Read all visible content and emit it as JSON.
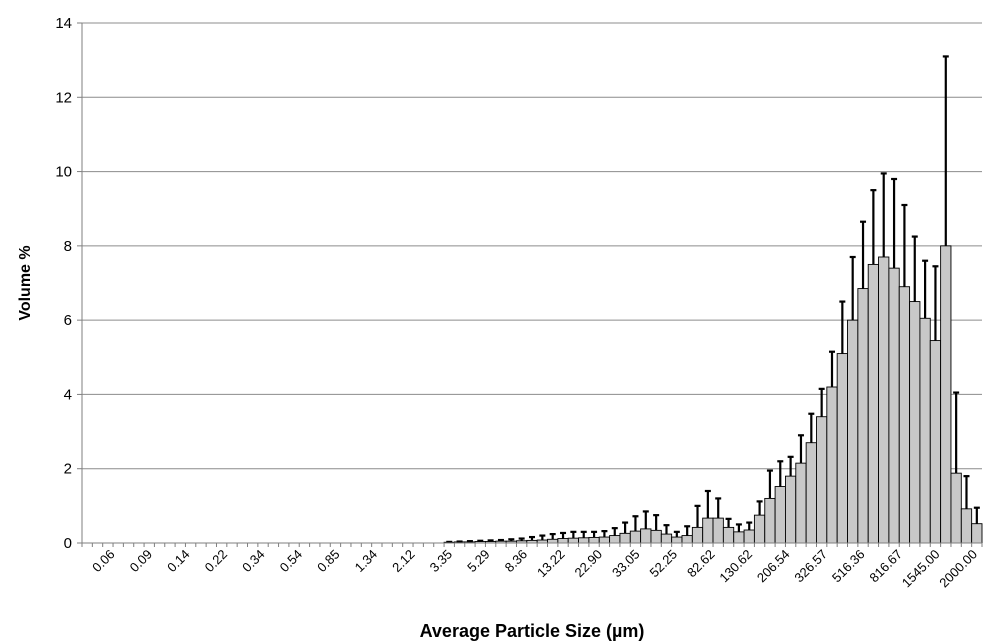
{
  "chart_data": {
    "type": "bar",
    "title": "",
    "xlabel": "Average Particle Size (µm)",
    "ylabel": "Volume %",
    "ylim": [
      0,
      14
    ],
    "yticks": [
      0,
      2,
      4,
      6,
      8,
      10,
      12,
      14
    ],
    "grid": true,
    "legend": "none",
    "bar_color": "#c8c8c8",
    "tick_labels": [
      "0.06",
      "0.09",
      "0.14",
      "0.22",
      "0.34",
      "0.54",
      "0.85",
      "1.34",
      "2.12",
      "3.35",
      "5.29",
      "8.36",
      "13.22",
      "22.90",
      "33.05",
      "52.25",
      "82.62",
      "130.62",
      "206.54",
      "326.57",
      "516.36",
      "816.67",
      "1545.00",
      "2000.00"
    ],
    "values": [
      0,
      0,
      0,
      0,
      0,
      0,
      0,
      0,
      0,
      0,
      0,
      0,
      0,
      0,
      0,
      0,
      0,
      0,
      0,
      0,
      0,
      0,
      0,
      0,
      0,
      0,
      0,
      0,
      0,
      0,
      0,
      0,
      0,
      0,
      0,
      0.02,
      0.03,
      0.03,
      0.04,
      0.04,
      0.05,
      0.05,
      0.06,
      0.07,
      0.08,
      0.1,
      0.12,
      0.13,
      0.14,
      0.15,
      0.16,
      0.2,
      0.26,
      0.32,
      0.38,
      0.34,
      0.24,
      0.16,
      0.2,
      0.42,
      0.67,
      0.67,
      0.42,
      0.3,
      0.35,
      0.75,
      1.2,
      1.52,
      1.8,
      2.15,
      2.7,
      3.4,
      4.2,
      5.1,
      6.0,
      6.85,
      7.5,
      7.7,
      7.4,
      6.9,
      6.5,
      6.05,
      5.45,
      8.0,
      1.88,
      0.92,
      0.52
    ],
    "error_upper": [
      0,
      0,
      0,
      0,
      0,
      0,
      0,
      0,
      0,
      0,
      0,
      0,
      0,
      0,
      0,
      0,
      0,
      0,
      0,
      0,
      0,
      0,
      0,
      0,
      0,
      0,
      0,
      0,
      0,
      0,
      0,
      0,
      0,
      0,
      0,
      0.03,
      0.04,
      0.05,
      0.06,
      0.07,
      0.08,
      0.1,
      0.12,
      0.16,
      0.2,
      0.24,
      0.27,
      0.3,
      0.3,
      0.3,
      0.32,
      0.4,
      0.55,
      0.72,
      0.85,
      0.75,
      0.48,
      0.3,
      0.45,
      1.0,
      1.4,
      1.2,
      0.65,
      0.5,
      0.55,
      1.12,
      1.95,
      2.2,
      2.32,
      2.9,
      3.48,
      4.15,
      5.15,
      6.5,
      7.7,
      8.65,
      9.5,
      9.95,
      9.8,
      9.1,
      8.25,
      7.6,
      7.45,
      13.1,
      4.05,
      1.8,
      0.95
    ]
  }
}
